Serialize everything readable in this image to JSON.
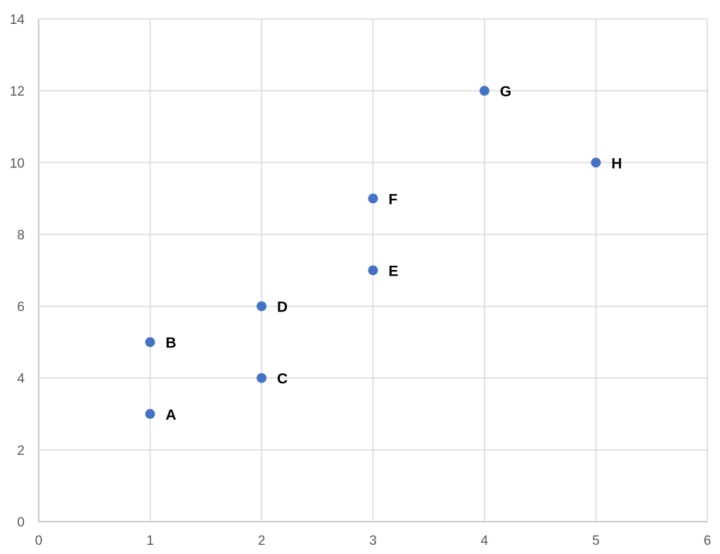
{
  "chart_data": {
    "type": "scatter",
    "title": "",
    "xlabel": "",
    "ylabel": "",
    "xlim": [
      0,
      6
    ],
    "ylim": [
      0,
      14
    ],
    "x_ticks": [
      0,
      1,
      2,
      3,
      4,
      5,
      6
    ],
    "y_ticks": [
      0,
      2,
      4,
      6,
      8,
      10,
      12,
      14
    ],
    "grid": true,
    "legend": null,
    "marker_color": "#4472C4",
    "points": [
      {
        "label": "A",
        "x": 1,
        "y": 3
      },
      {
        "label": "B",
        "x": 1,
        "y": 5
      },
      {
        "label": "C",
        "x": 2,
        "y": 4
      },
      {
        "label": "D",
        "x": 2,
        "y": 6
      },
      {
        "label": "E",
        "x": 3,
        "y": 7
      },
      {
        "label": "F",
        "x": 3,
        "y": 9
      },
      {
        "label": "G",
        "x": 4,
        "y": 12
      },
      {
        "label": "H",
        "x": 5,
        "y": 10
      }
    ]
  }
}
